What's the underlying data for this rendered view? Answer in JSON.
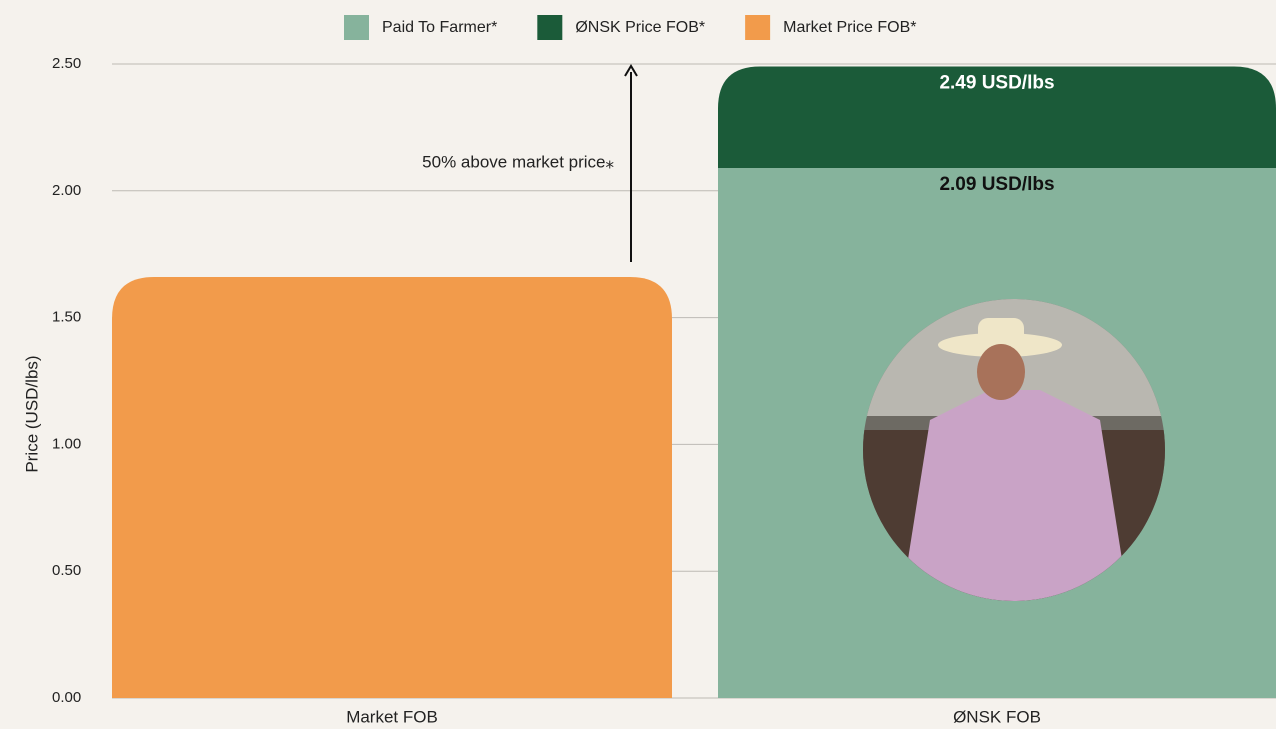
{
  "chart_data": {
    "type": "bar",
    "y_label": "Price (USD/lbs)",
    "categories": [
      "Market FOB",
      "ØNSK FOB"
    ],
    "series": [
      {
        "name": "Paid To Farmer*",
        "color": "#86b39c",
        "values": [
          null,
          2.09
        ],
        "value_labels": [
          null,
          "2.09 USD/lbs"
        ],
        "label_color": "#111111"
      },
      {
        "name": "ØNSK Price FOB*",
        "color": "#1b5b39",
        "values": [
          null,
          2.49
        ],
        "value_labels": [
          null,
          "2.49 USD/lbs"
        ],
        "label_color": "#ffffff"
      },
      {
        "name": "Market Price FOB*",
        "color": "#f29b4b",
        "values": [
          1.66,
          null
        ],
        "value_labels": [
          null,
          null
        ],
        "label_color": "#111111"
      }
    ],
    "annotation": "50% above market price⁎",
    "ylim": [
      0,
      2.5
    ],
    "yticks": [
      {
        "value": 0,
        "label": "0.00"
      },
      {
        "value": 0.5,
        "label": "0.50"
      },
      {
        "value": 1,
        "label": "1.00"
      },
      {
        "value": 1.5,
        "label": "1.50"
      },
      {
        "value": 2,
        "label": "2.00"
      },
      {
        "value": 2.5,
        "label": "2.50"
      }
    ],
    "grid": true
  }
}
